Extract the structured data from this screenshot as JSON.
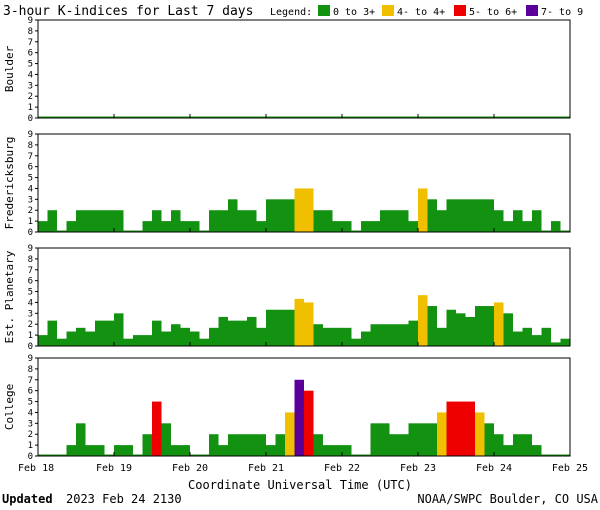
{
  "chart_data": {
    "type": "bar",
    "title": "3-hour K-indices for Last 7 days",
    "legend": {
      "label": "Legend:",
      "placement": "top-right",
      "entries": [
        {
          "label": "0 to 3+",
          "color": "#139110"
        },
        {
          "label": "4- to 4+",
          "color": "#f0c000"
        },
        {
          "label": "5- to 6+",
          "color": "#ee0000"
        },
        {
          "label": "7- to 9",
          "color": "#5a0099"
        }
      ]
    },
    "xlabel": "Coordinate Universal Time (UTC)",
    "x_ticks": [
      "Feb 18",
      "Feb 19",
      "Feb 20",
      "Feb 21",
      "Feb 22",
      "Feb 23",
      "Feb 24",
      "Feb 25"
    ],
    "ylim": [
      0,
      9
    ],
    "y_ticks": [
      "0",
      "1",
      "2",
      "3",
      "4",
      "5",
      "6",
      "7",
      "8",
      "9"
    ],
    "intervals_per_day": 8,
    "panels": [
      {
        "name": "Boulder",
        "values": [
          0,
          0,
          0,
          0,
          0,
          0,
          0,
          0,
          0,
          0,
          0,
          0,
          0,
          0,
          0,
          0,
          0,
          0,
          0,
          0,
          0,
          0,
          0,
          0,
          0,
          0,
          0,
          0,
          0,
          0,
          0,
          0,
          0,
          0,
          0,
          0,
          0,
          0,
          0,
          0,
          0,
          0,
          0,
          0,
          0,
          0,
          0,
          0,
          0,
          0,
          0,
          0,
          0,
          0,
          0,
          0
        ]
      },
      {
        "name": "Fredericksburg",
        "values": [
          1,
          2,
          0,
          1,
          2,
          2,
          2,
          2,
          2,
          0,
          0,
          1,
          2,
          1,
          2,
          1,
          1,
          0,
          2,
          2,
          3,
          2,
          2,
          1,
          3,
          3,
          3,
          4,
          4,
          2,
          2,
          1,
          1,
          0,
          1,
          1,
          2,
          2,
          2,
          1,
          4,
          3,
          2,
          3,
          3,
          3,
          3,
          3,
          2,
          1,
          2,
          1,
          2,
          0,
          1,
          0
        ]
      },
      {
        "name": "Est. Planetary",
        "values": [
          1,
          2.33,
          0.67,
          1.33,
          1.67,
          1.33,
          2.33,
          2.33,
          3,
          0.67,
          1,
          1,
          2.33,
          1.33,
          2,
          1.67,
          1.33,
          0.67,
          1.67,
          2.67,
          2.33,
          2.33,
          2.67,
          1.67,
          3.33,
          3.33,
          3.33,
          4.33,
          4,
          2,
          1.67,
          1.67,
          1.67,
          0.67,
          1.33,
          2,
          2,
          2,
          2,
          2.33,
          4.67,
          3.67,
          1.67,
          3.33,
          3,
          2.67,
          3.67,
          3.67,
          4,
          3,
          1.33,
          1.67,
          1,
          1.67,
          0.33,
          0.67
        ]
      },
      {
        "name": "College",
        "values": [
          0,
          0,
          0,
          1,
          3,
          1,
          1,
          0,
          1,
          1,
          0,
          2,
          5,
          3,
          1,
          1,
          0,
          0,
          2,
          1,
          2,
          2,
          2,
          2,
          1,
          2,
          4,
          7,
          6,
          2,
          1,
          1,
          1,
          0,
          0,
          3,
          3,
          2,
          2,
          3,
          3,
          3,
          4,
          5,
          5,
          5,
          4,
          3,
          2,
          1,
          2,
          2,
          1,
          0,
          0,
          0
        ]
      }
    ]
  },
  "footer": {
    "updated_label": "Updated",
    "updated_value": "2023 Feb 24 2130",
    "credit": "NOAA/SWPC Boulder, CO USA"
  }
}
